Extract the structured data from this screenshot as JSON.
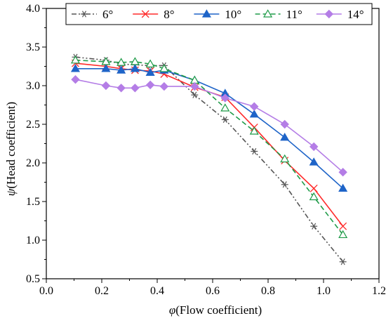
{
  "chart_data": {
    "type": "line",
    "xlabel_symbol": "φ",
    "xlabel_text": "(Flow coefficient)",
    "ylabel_symbol": "ψ",
    "ylabel_text": "(Head coefficient)",
    "xlim": [
      0.0,
      1.2
    ],
    "ylim": [
      0.5,
      4.0
    ],
    "xticks": [
      "0.0",
      "0.2",
      "0.4",
      "0.6",
      "0.8",
      "1.0",
      "1.2"
    ],
    "yticks": [
      "0.5",
      "1.0",
      "1.5",
      "2.0",
      "2.5",
      "3.0",
      "3.5",
      "4.0"
    ],
    "grid": false,
    "legend_position": "top",
    "series": [
      {
        "name": "6°",
        "color": "#555555",
        "marker": "asterisk",
        "dash": "dash-dot-dot",
        "x": [
          0.105,
          0.215,
          0.27,
          0.32,
          0.375,
          0.425,
          0.535,
          0.645,
          0.75,
          0.86,
          0.965,
          1.07
        ],
        "y": [
          3.37,
          3.33,
          3.28,
          3.27,
          3.26,
          3.26,
          2.88,
          2.56,
          2.15,
          1.72,
          1.18,
          0.72
        ]
      },
      {
        "name": "8°",
        "color": "#ff2a2a",
        "marker": "x",
        "dash": "solid",
        "x": [
          0.105,
          0.215,
          0.27,
          0.32,
          0.375,
          0.425,
          0.535,
          0.645,
          0.75,
          0.86,
          0.965,
          1.07
        ],
        "y": [
          3.29,
          3.25,
          3.22,
          3.2,
          3.19,
          3.15,
          2.98,
          2.85,
          2.46,
          2.03,
          1.67,
          1.18
        ]
      },
      {
        "name": "10°",
        "color": "#1e64c8",
        "marker": "triangle-filled",
        "dash": "solid",
        "x": [
          0.105,
          0.215,
          0.27,
          0.32,
          0.375,
          0.425,
          0.535,
          0.645,
          0.75,
          0.86,
          0.965,
          1.07
        ],
        "y": [
          3.22,
          3.22,
          3.2,
          3.22,
          3.17,
          3.2,
          3.07,
          2.9,
          2.63,
          2.33,
          2.01,
          1.67
        ]
      },
      {
        "name": "11°",
        "color": "#1f9b48",
        "marker": "triangle-open",
        "dash": "dash",
        "x": [
          0.105,
          0.215,
          0.27,
          0.32,
          0.375,
          0.425,
          0.535,
          0.645,
          0.75,
          0.86,
          0.965,
          1.07
        ],
        "y": [
          3.33,
          3.31,
          3.3,
          3.31,
          3.28,
          3.22,
          3.07,
          2.71,
          2.41,
          2.05,
          1.56,
          1.07
        ]
      },
      {
        "name": "14°",
        "color": "#b47de6",
        "marker": "diamond",
        "dash": "solid",
        "x": [
          0.105,
          0.215,
          0.27,
          0.32,
          0.375,
          0.425,
          0.535,
          0.645,
          0.75,
          0.86,
          0.965,
          1.07
        ],
        "y": [
          3.08,
          3.0,
          2.97,
          2.97,
          3.01,
          2.99,
          2.99,
          2.84,
          2.73,
          2.5,
          2.21,
          1.88
        ]
      }
    ]
  }
}
